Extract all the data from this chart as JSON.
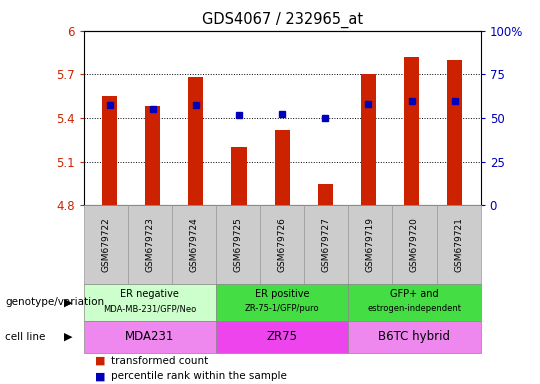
{
  "title": "GDS4067 / 232965_at",
  "samples": [
    "GSM679722",
    "GSM679723",
    "GSM679724",
    "GSM679725",
    "GSM679726",
    "GSM679727",
    "GSM679719",
    "GSM679720",
    "GSM679721"
  ],
  "bar_values": [
    5.55,
    5.48,
    5.68,
    5.2,
    5.32,
    4.95,
    5.7,
    5.82,
    5.8
  ],
  "dot_values": [
    5.49,
    5.46,
    5.49,
    5.42,
    5.43,
    5.4,
    5.5,
    5.52,
    5.52
  ],
  "ylim": [
    4.8,
    6.0
  ],
  "yticks": [
    4.8,
    5.1,
    5.4,
    5.7,
    6.0
  ],
  "ytick_labels": [
    "4.8",
    "5.1",
    "5.4",
    "5.7",
    "6"
  ],
  "right_yticks_pct": [
    0,
    25,
    50,
    75,
    100
  ],
  "right_ytick_labels": [
    "0",
    "25",
    "50",
    "75",
    "100%"
  ],
  "bar_color": "#cc2200",
  "dot_color": "#0000bb",
  "ylabel_color": "#cc2200",
  "right_ylabel_color": "#0000bb",
  "groups": [
    {
      "label1": "ER negative",
      "label2": "MDA-MB-231/GFP/Neo",
      "cell_line": "MDA231",
      "start": 0,
      "end": 3,
      "geno_color": "#ccffcc",
      "cell_color": "#ee88ee"
    },
    {
      "label1": "ER positive",
      "label2": "ZR-75-1/GFP/puro",
      "cell_line": "ZR75",
      "start": 3,
      "end": 6,
      "geno_color": "#44dd44",
      "cell_color": "#ee44ee"
    },
    {
      "label1": "GFP+ and",
      "label2": "estrogen-independent",
      "cell_line": "B6TC hybrid",
      "start": 6,
      "end": 9,
      "geno_color": "#44dd44",
      "cell_color": "#ee88ee"
    }
  ],
  "legend_items": [
    "transformed count",
    "percentile rank within the sample"
  ],
  "genotype_label": "genotype/variation",
  "cell_line_label": "cell line",
  "bar_width": 0.35,
  "tick_bg_color": "#cccccc",
  "grid_yticks": [
    5.1,
    5.4,
    5.7
  ]
}
